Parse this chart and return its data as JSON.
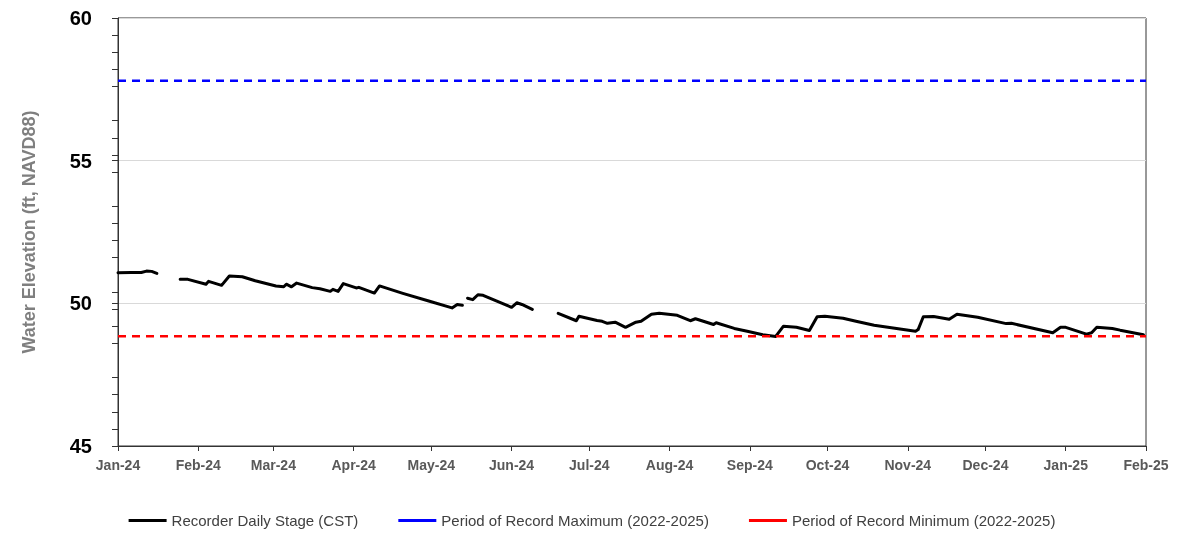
{
  "chart_data": {
    "type": "line",
    "ylabel": "Water Elevation (ft, NAVD88)",
    "xlim": [
      "2024-01-01",
      "2025-02-01"
    ],
    "xticks": [
      {
        "value": "2024-01-01",
        "label": "Jan-24"
      },
      {
        "value": "2024-02-01",
        "label": "Feb-24"
      },
      {
        "value": "2024-03-01",
        "label": "Mar-24"
      },
      {
        "value": "2024-04-01",
        "label": "Apr-24"
      },
      {
        "value": "2024-05-01",
        "label": "May-24"
      },
      {
        "value": "2024-06-01",
        "label": "Jun-24"
      },
      {
        "value": "2024-07-01",
        "label": "Jul-24"
      },
      {
        "value": "2024-08-01",
        "label": "Aug-24"
      },
      {
        "value": "2024-09-01",
        "label": "Sep-24"
      },
      {
        "value": "2024-10-01",
        "label": "Oct-24"
      },
      {
        "value": "2024-11-01",
        "label": "Nov-24"
      },
      {
        "value": "2024-12-01",
        "label": "Dec-24"
      },
      {
        "value": "2025-01-01",
        "label": "Jan-25"
      },
      {
        "value": "2025-02-01",
        "label": "Feb-25"
      }
    ],
    "ylim": [
      45,
      60
    ],
    "yticks": [
      45,
      50,
      55,
      60
    ],
    "grid": "y",
    "legend": "bottom",
    "marker": "none",
    "line_style": "solid",
    "series": [
      {
        "name": "Recorder Daily Stage (CST)",
        "color": "#000000",
        "x": [
          "2024-01-01",
          "2024-01-06",
          "2024-01-10",
          "2024-01-12",
          "2024-01-14",
          "2024-01-16",
          "2024-01-20",
          "2024-01-25",
          "2024-01-28",
          "2024-02-04",
          "2024-02-05",
          "2024-02-10",
          "2024-02-13",
          "2024-02-18",
          "2024-02-23",
          "2024-03-02",
          "2024-03-05",
          "2024-03-06",
          "2024-03-08",
          "2024-03-10",
          "2024-03-16",
          "2024-03-19",
          "2024-03-23",
          "2024-03-24",
          "2024-03-26",
          "2024-03-28",
          "2024-04-02",
          "2024-04-03",
          "2024-04-09",
          "2024-04-11",
          "2024-04-20",
          "2024-04-30",
          "2024-05-09",
          "2024-05-11",
          "2024-05-13",
          "2024-05-14",
          "2024-05-15",
          "2024-05-17",
          "2024-05-19",
          "2024-05-21",
          "2024-06-01",
          "2024-06-03",
          "2024-06-05",
          "2024-06-09",
          "2024-06-14",
          "2024-06-19",
          "2024-06-26",
          "2024-06-27",
          "2024-07-04",
          "2024-07-06",
          "2024-07-08",
          "2024-07-11",
          "2024-07-15",
          "2024-07-19",
          "2024-07-21",
          "2024-07-25",
          "2024-07-28",
          "2024-08-04",
          "2024-08-09",
          "2024-08-11",
          "2024-08-18",
          "2024-08-19",
          "2024-08-26",
          "2024-08-31",
          "2024-09-06",
          "2024-09-11",
          "2024-09-14",
          "2024-09-19",
          "2024-09-24",
          "2024-09-27",
          "2024-09-30",
          "2024-10-07",
          "2024-10-12",
          "2024-10-19",
          "2024-11-04",
          "2024-11-05",
          "2024-11-07",
          "2024-11-11",
          "2024-11-17",
          "2024-11-20",
          "2024-11-28",
          "2024-12-09",
          "2024-12-11",
          "2024-12-27",
          "2024-12-30",
          "2025-01-01",
          "2025-01-09",
          "2025-01-11",
          "2025-01-13",
          "2025-01-19",
          "2025-01-22",
          "2025-01-31"
        ],
        "values": [
          51.07,
          51.08,
          51.08,
          51.13,
          51.12,
          51.05,
          null,
          50.84,
          50.84,
          50.67,
          50.77,
          50.63,
          50.96,
          50.93,
          50.79,
          50.61,
          50.58,
          50.67,
          50.58,
          50.71,
          50.55,
          50.51,
          50.42,
          50.49,
          50.42,
          50.69,
          50.54,
          50.56,
          50.36,
          50.61,
          50.35,
          50.08,
          49.84,
          49.96,
          49.93,
          null,
          50.18,
          50.13,
          50.3,
          50.28,
          49.86,
          50.02,
          49.96,
          49.79,
          null,
          49.65,
          49.39,
          49.55,
          49.4,
          49.37,
          49.3,
          49.34,
          49.16,
          49.34,
          49.37,
          49.62,
          49.65,
          49.58,
          49.39,
          49.46,
          49.26,
          49.32,
          49.12,
          49.02,
          48.9,
          48.84,
          49.2,
          49.16,
          49.05,
          49.53,
          49.55,
          49.48,
          49.37,
          49.23,
          49.02,
          49.08,
          49.53,
          49.54,
          49.44,
          49.62,
          49.51,
          49.29,
          49.3,
          48.97,
          49.16,
          49.16,
          48.92,
          48.97,
          49.16,
          49.12,
          49.06,
          48.9
        ]
      }
    ],
    "ref_lines": [
      {
        "axis": "y",
        "value": 57.8,
        "label": "Period of Record Maximum (2022-2025)",
        "color": "#0000ff",
        "line_style": "dashed"
      },
      {
        "axis": "y",
        "value": 48.85,
        "label": "Period of Record Minimum (2022-2025)",
        "color": "#ff0000",
        "line_style": "dashed"
      }
    ]
  }
}
